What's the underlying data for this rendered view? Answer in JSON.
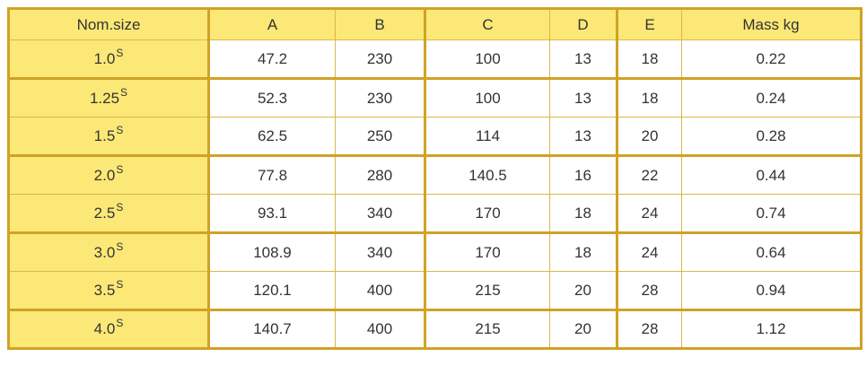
{
  "chart_data": {
    "type": "table",
    "title": "",
    "columns": [
      "Nom.size",
      "A",
      "B",
      "C",
      "D",
      "E",
      "Mass kg"
    ],
    "rows": [
      {
        "nom_base": "1.0",
        "nom_sup": "S",
        "values": [
          "47.2",
          "230",
          "100",
          "13",
          "18",
          "0.22"
        ]
      },
      {
        "nom_base": "1.25",
        "nom_sup": "S",
        "values": [
          "52.3",
          "230",
          "100",
          "13",
          "18",
          "0.24"
        ]
      },
      {
        "nom_base": "1.5",
        "nom_sup": "S",
        "values": [
          "62.5",
          "250",
          "114",
          "13",
          "20",
          "0.28"
        ]
      },
      {
        "nom_base": "2.0",
        "nom_sup": "S",
        "values": [
          "77.8",
          "280",
          "140.5",
          "16",
          "22",
          "0.44"
        ]
      },
      {
        "nom_base": "2.5",
        "nom_sup": "S",
        "values": [
          "93.1",
          "340",
          "170",
          "18",
          "24",
          "0.74"
        ]
      },
      {
        "nom_base": "3.0",
        "nom_sup": "S",
        "values": [
          "108.9",
          "340",
          "170",
          "18",
          "24",
          "0.64"
        ]
      },
      {
        "nom_base": "3.5",
        "nom_sup": "S",
        "values": [
          "120.1",
          "400",
          "215",
          "20",
          "28",
          "0.94"
        ]
      },
      {
        "nom_base": "4.0",
        "nom_sup": "S",
        "values": [
          "140.7",
          "400",
          "215",
          "20",
          "28",
          "1.12"
        ]
      }
    ]
  },
  "colors": {
    "header_bg": "#FBE877",
    "label_col_bg": "#FBE877",
    "cell_bg": "#FFFFFF",
    "border_thick": "#D0A226",
    "border_thin": "#D9B84A",
    "text": "#333333",
    "page_bg": "#FFFFFF"
  }
}
